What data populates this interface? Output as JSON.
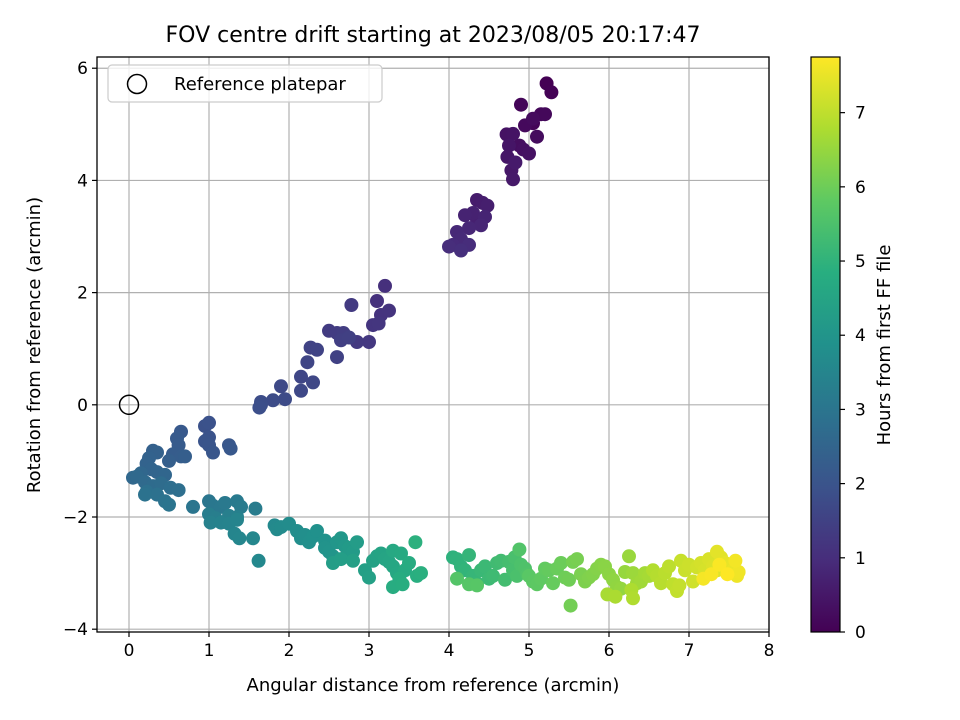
{
  "chart_data": {
    "type": "scatter",
    "title": "FOV centre drift starting at 2023/08/05 20:17:47",
    "xlabel": "Angular distance from reference (arcmin)",
    "ylabel": "Rotation from reference (arcmin)",
    "xlim": [
      -0.4,
      8
    ],
    "ylim": [
      -4.05,
      6.2
    ],
    "xticks": [
      "0",
      "1",
      "2",
      "3",
      "4",
      "5",
      "6",
      "7",
      "8"
    ],
    "yticks": [
      "−4",
      "−2",
      "0",
      "2",
      "4",
      "6"
    ],
    "grid": true,
    "legend": {
      "placement": "top-left",
      "entries": [
        "Reference platepar"
      ]
    },
    "reference_point": {
      "x": 0,
      "y": 0
    },
    "colorbar": {
      "label": "Hours from first FF file",
      "colormap": "viridis",
      "range": [
        0,
        7.75
      ],
      "ticks": [
        "0",
        "1",
        "2",
        "3",
        "4",
        "5",
        "6",
        "7"
      ]
    },
    "series": [
      {
        "points": [
          [
            5.22,
            5.73
          ],
          [
            5.28,
            5.57
          ],
          [
            5.05,
            5.02
          ],
          [
            4.9,
            5.35
          ],
          [
            5.15,
            5.18
          ],
          [
            5.2,
            5.18
          ],
          [
            4.95,
            4.98
          ],
          [
            5.05,
            5.1
          ],
          [
            5.1,
            4.78
          ],
          [
            4.88,
            4.62
          ],
          [
            4.93,
            4.55
          ],
          [
            5.0,
            4.48
          ],
          [
            4.72,
            4.82
          ],
          [
            4.8,
            4.83
          ],
          [
            4.75,
            4.62
          ],
          [
            4.73,
            4.42
          ],
          [
            4.78,
            4.18
          ],
          [
            4.8,
            4.02
          ],
          [
            4.83,
            4.32
          ],
          [
            4.35,
            3.65
          ],
          [
            4.42,
            3.6
          ],
          [
            4.48,
            3.55
          ],
          [
            4.35,
            3.3
          ],
          [
            4.3,
            3.42
          ],
          [
            4.2,
            3.38
          ],
          [
            4.45,
            3.35
          ],
          [
            4.4,
            3.2
          ],
          [
            4.25,
            3.15
          ],
          [
            4.1,
            3.08
          ],
          [
            4.15,
            2.95
          ],
          [
            4.05,
            2.85
          ],
          [
            4.25,
            2.85
          ],
          [
            4.0,
            2.82
          ],
          [
            4.15,
            2.75
          ],
          [
            3.2,
            2.12
          ],
          [
            3.1,
            1.85
          ],
          [
            3.15,
            1.6
          ],
          [
            3.25,
            1.68
          ],
          [
            3.05,
            1.42
          ],
          [
            3.12,
            1.45
          ],
          [
            3.0,
            1.12
          ],
          [
            2.85,
            1.12
          ],
          [
            2.78,
            1.78
          ],
          [
            2.5,
            1.32
          ],
          [
            2.6,
            1.28
          ],
          [
            2.68,
            1.28
          ],
          [
            2.65,
            1.15
          ],
          [
            2.75,
            1.2
          ],
          [
            2.6,
            0.85
          ],
          [
            2.27,
            1.02
          ],
          [
            2.35,
            0.98
          ],
          [
            2.23,
            0.76
          ],
          [
            2.15,
            0.5
          ],
          [
            2.3,
            0.4
          ],
          [
            2.15,
            0.25
          ],
          [
            1.9,
            0.33
          ],
          [
            1.95,
            0.1
          ],
          [
            1.8,
            0.08
          ],
          [
            1.65,
            0.05
          ],
          [
            1.65,
            0.0
          ],
          [
            1.63,
            -0.05
          ],
          [
            0.95,
            -0.38
          ],
          [
            1.0,
            -0.32
          ],
          [
            1.0,
            -0.58
          ],
          [
            0.95,
            -0.65
          ],
          [
            1.0,
            -0.72
          ],
          [
            1.05,
            -0.85
          ],
          [
            1.25,
            -0.72
          ],
          [
            1.27,
            -0.78
          ],
          [
            0.65,
            -0.48
          ],
          [
            0.6,
            -0.6
          ],
          [
            0.62,
            -0.72
          ],
          [
            0.55,
            -0.88
          ],
          [
            0.65,
            -0.92
          ],
          [
            0.7,
            -0.92
          ],
          [
            0.5,
            -1.0
          ],
          [
            0.3,
            -0.82
          ],
          [
            0.35,
            -0.85
          ],
          [
            0.25,
            -0.95
          ],
          [
            0.22,
            -1.05
          ],
          [
            0.28,
            -1.15
          ],
          [
            0.35,
            -1.2
          ],
          [
            0.45,
            -1.25
          ],
          [
            0.15,
            -1.22
          ],
          [
            0.05,
            -1.3
          ],
          [
            0.1,
            -1.28
          ],
          [
            0.2,
            -1.38
          ],
          [
            0.3,
            -1.45
          ],
          [
            0.4,
            -1.4
          ],
          [
            0.52,
            -1.48
          ],
          [
            0.62,
            -1.52
          ],
          [
            0.22,
            -1.55
          ],
          [
            0.35,
            -1.6
          ],
          [
            0.2,
            -1.6
          ],
          [
            0.45,
            -1.72
          ],
          [
            0.5,
            -1.78
          ],
          [
            0.8,
            -1.82
          ],
          [
            1.0,
            -1.72
          ],
          [
            1.05,
            -1.8
          ],
          [
            1.15,
            -1.82
          ],
          [
            1.2,
            -1.75
          ],
          [
            1.35,
            -1.72
          ],
          [
            1.4,
            -1.82
          ],
          [
            1.58,
            -1.85
          ],
          [
            1.0,
            -1.95
          ],
          [
            1.08,
            -2.02
          ],
          [
            1.25,
            -1.98
          ],
          [
            1.35,
            -2.0
          ],
          [
            1.02,
            -2.1
          ],
          [
            1.15,
            -2.1
          ],
          [
            1.25,
            -2.12
          ],
          [
            1.35,
            -2.05
          ],
          [
            1.32,
            -2.3
          ],
          [
            1.38,
            -2.38
          ],
          [
            1.55,
            -2.38
          ],
          [
            1.62,
            -2.78
          ],
          [
            1.82,
            -2.15
          ],
          [
            1.85,
            -2.22
          ],
          [
            1.9,
            -2.18
          ],
          [
            2.0,
            -2.12
          ],
          [
            2.1,
            -2.25
          ],
          [
            2.15,
            -2.38
          ],
          [
            2.2,
            -2.32
          ],
          [
            2.25,
            -2.45
          ],
          [
            2.3,
            -2.35
          ],
          [
            2.35,
            -2.25
          ],
          [
            2.45,
            -2.42
          ],
          [
            2.45,
            -2.55
          ],
          [
            2.5,
            -2.62
          ],
          [
            2.55,
            -2.7
          ],
          [
            2.6,
            -2.45
          ],
          [
            2.65,
            -2.38
          ],
          [
            2.7,
            -2.52
          ],
          [
            2.72,
            -2.7
          ],
          [
            2.75,
            -2.55
          ],
          [
            2.8,
            -2.62
          ],
          [
            2.85,
            -2.45
          ],
          [
            2.55,
            -2.82
          ],
          [
            2.65,
            -2.75
          ],
          [
            2.8,
            -2.78
          ],
          [
            2.95,
            -2.95
          ],
          [
            3.0,
            -3.08
          ],
          [
            3.05,
            -2.78
          ],
          [
            3.1,
            -2.7
          ],
          [
            3.15,
            -2.65
          ],
          [
            3.2,
            -2.75
          ],
          [
            3.25,
            -2.8
          ],
          [
            3.3,
            -2.88
          ],
          [
            3.35,
            -3.0
          ],
          [
            3.3,
            -2.6
          ],
          [
            3.4,
            -2.65
          ],
          [
            3.45,
            -2.95
          ],
          [
            3.5,
            -2.82
          ],
          [
            3.38,
            -3.1
          ],
          [
            3.3,
            -3.25
          ],
          [
            3.42,
            -3.2
          ],
          [
            3.6,
            -3.05
          ],
          [
            3.65,
            -3.0
          ],
          [
            3.58,
            -2.45
          ],
          [
            4.05,
            -2.72
          ],
          [
            4.1,
            -2.75
          ],
          [
            4.15,
            -2.88
          ],
          [
            4.2,
            -2.95
          ],
          [
            4.25,
            -2.68
          ],
          [
            4.3,
            -3.05
          ],
          [
            4.35,
            -3.18
          ],
          [
            4.4,
            -2.95
          ],
          [
            4.45,
            -2.88
          ],
          [
            4.5,
            -3.1
          ],
          [
            4.55,
            -3.05
          ],
          [
            4.6,
            -2.82
          ],
          [
            4.65,
            -2.78
          ],
          [
            4.7,
            -3.12
          ],
          [
            4.75,
            -2.8
          ],
          [
            4.8,
            -2.95
          ],
          [
            4.82,
            -2.72
          ],
          [
            4.85,
            -3.05
          ],
          [
            4.9,
            -2.85
          ],
          [
            4.95,
            -2.92
          ],
          [
            4.98,
            -3.02
          ],
          [
            4.88,
            -2.58
          ],
          [
            4.1,
            -3.1
          ],
          [
            4.25,
            -3.2
          ],
          [
            4.35,
            -3.22
          ],
          [
            5.0,
            -3.05
          ],
          [
            5.05,
            -3.15
          ],
          [
            5.1,
            -3.2
          ],
          [
            5.15,
            -3.1
          ],
          [
            5.2,
            -2.92
          ],
          [
            5.25,
            -2.95
          ],
          [
            5.3,
            -3.18
          ],
          [
            5.35,
            -2.92
          ],
          [
            5.4,
            -2.82
          ],
          [
            5.45,
            -3.08
          ],
          [
            5.5,
            -3.12
          ],
          [
            5.52,
            -3.58
          ],
          [
            5.55,
            -2.8
          ],
          [
            5.6,
            -2.75
          ],
          [
            5.65,
            -3.02
          ],
          [
            5.7,
            -3.15
          ],
          [
            5.75,
            -3.08
          ],
          [
            5.8,
            -3.02
          ],
          [
            5.85,
            -2.92
          ],
          [
            5.9,
            -2.85
          ],
          [
            5.95,
            -2.88
          ],
          [
            6.0,
            -3.02
          ],
          [
            6.05,
            -3.12
          ],
          [
            6.1,
            -3.25
          ],
          [
            6.15,
            -3.28
          ],
          [
            6.2,
            -2.98
          ],
          [
            6.25,
            -2.7
          ],
          [
            6.3,
            -3.0
          ],
          [
            6.35,
            -3.18
          ],
          [
            6.4,
            -3.15
          ],
          [
            6.45,
            -3.0
          ],
          [
            6.5,
            -3.05
          ],
          [
            5.98,
            -3.38
          ],
          [
            6.08,
            -3.42
          ],
          [
            6.28,
            -3.3
          ],
          [
            6.3,
            -3.45
          ],
          [
            6.55,
            -2.95
          ],
          [
            6.6,
            -3.05
          ],
          [
            6.65,
            -3.18
          ],
          [
            6.7,
            -3.0
          ],
          [
            6.75,
            -2.88
          ],
          [
            6.8,
            -3.2
          ],
          [
            6.85,
            -3.32
          ],
          [
            6.88,
            -3.22
          ],
          [
            6.9,
            -2.78
          ],
          [
            6.95,
            -2.95
          ],
          [
            7.0,
            -2.85
          ],
          [
            7.05,
            -3.15
          ],
          [
            7.1,
            -2.9
          ],
          [
            7.15,
            -2.82
          ],
          [
            7.2,
            -2.95
          ],
          [
            7.25,
            -2.75
          ],
          [
            7.3,
            -2.88
          ],
          [
            7.35,
            -2.95
          ],
          [
            7.4,
            -2.72
          ],
          [
            7.35,
            -2.62
          ],
          [
            7.45,
            -2.82
          ],
          [
            7.5,
            -2.92
          ],
          [
            7.55,
            -2.95
          ],
          [
            7.6,
            -3.05
          ],
          [
            7.62,
            -2.98
          ],
          [
            7.58,
            -2.78
          ],
          [
            7.18,
            -3.1
          ],
          [
            7.28,
            -3.02
          ],
          [
            7.38,
            -2.85
          ],
          [
            7.48,
            -3.02
          ]
        ]
      }
    ]
  }
}
